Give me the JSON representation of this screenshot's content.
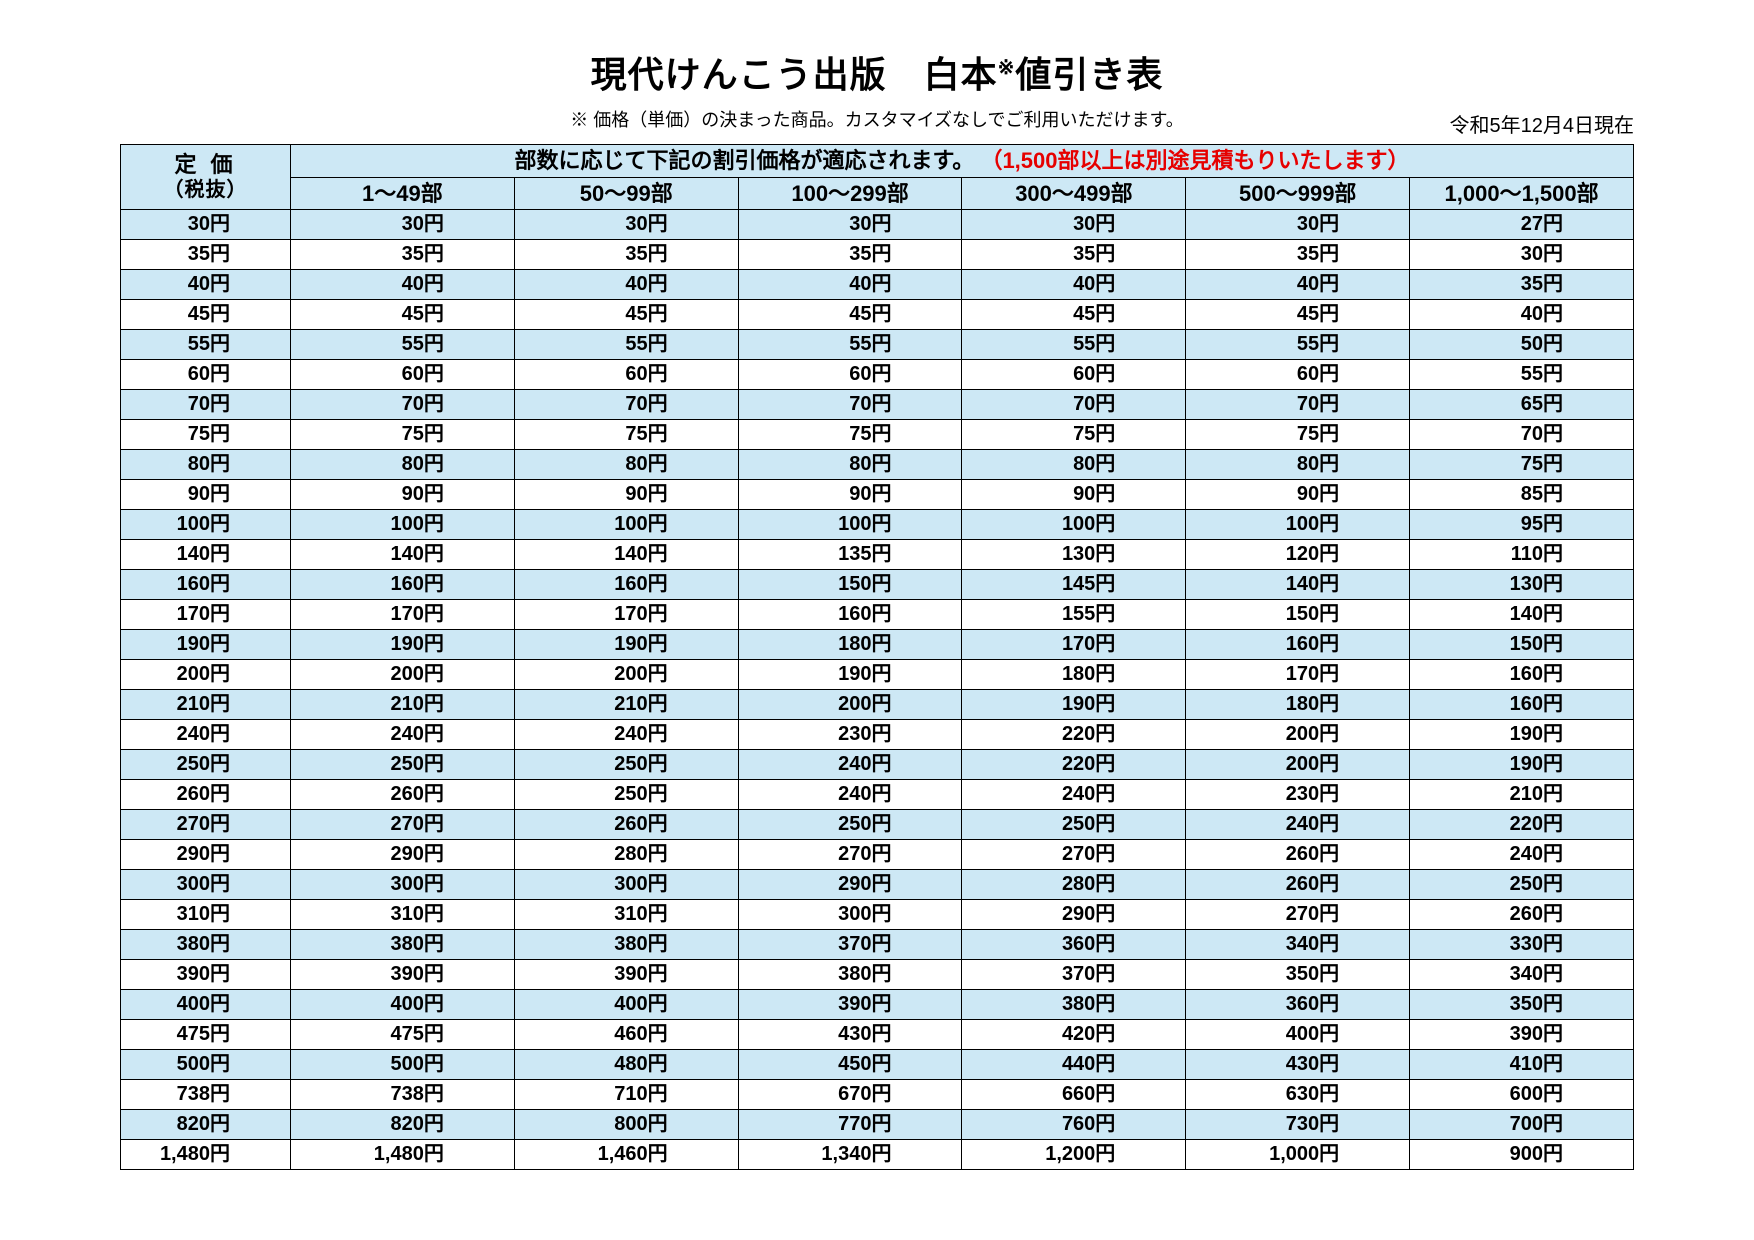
{
  "title": "現代けんこう出版　白本",
  "title_suffix": "値引き表",
  "note_mark": "※",
  "subtitle": "※ 価格（単価）の決まった商品。カスタマイズなしでご利用いただけます。",
  "date_text": "令和5年12月4日現在",
  "header": {
    "price_label_1": "定 価",
    "price_label_2": "（税抜）",
    "banner_black": "部数に応じて下記の割引価格が適応されます。",
    "banner_red": "（1,500部以上は別途見積もりいたします）",
    "columns": [
      "1～49部",
      "50～99部",
      "100～299部",
      "300～499部",
      "500～999部",
      "1,000～1,500部"
    ]
  },
  "colors": {
    "header_bg": "#cde8f5",
    "row_blue": "#cde8f5",
    "row_white": "#ffffff",
    "border": "#000000",
    "red": "#e60000"
  },
  "rows": [
    {
      "price": "30円",
      "cells": [
        "30円",
        "30円",
        "30円",
        "30円",
        "30円",
        "27円"
      ],
      "blue": true
    },
    {
      "price": "35円",
      "cells": [
        "35円",
        "35円",
        "35円",
        "35円",
        "35円",
        "30円"
      ],
      "blue": false
    },
    {
      "price": "40円",
      "cells": [
        "40円",
        "40円",
        "40円",
        "40円",
        "40円",
        "35円"
      ],
      "blue": true
    },
    {
      "price": "45円",
      "cells": [
        "45円",
        "45円",
        "45円",
        "45円",
        "45円",
        "40円"
      ],
      "blue": false
    },
    {
      "price": "55円",
      "cells": [
        "55円",
        "55円",
        "55円",
        "55円",
        "55円",
        "50円"
      ],
      "blue": true
    },
    {
      "price": "60円",
      "cells": [
        "60円",
        "60円",
        "60円",
        "60円",
        "60円",
        "55円"
      ],
      "blue": false
    },
    {
      "price": "70円",
      "cells": [
        "70円",
        "70円",
        "70円",
        "70円",
        "70円",
        "65円"
      ],
      "blue": true
    },
    {
      "price": "75円",
      "cells": [
        "75円",
        "75円",
        "75円",
        "75円",
        "75円",
        "70円"
      ],
      "blue": false
    },
    {
      "price": "80円",
      "cells": [
        "80円",
        "80円",
        "80円",
        "80円",
        "80円",
        "75円"
      ],
      "blue": true
    },
    {
      "price": "90円",
      "cells": [
        "90円",
        "90円",
        "90円",
        "90円",
        "90円",
        "85円"
      ],
      "blue": false
    },
    {
      "price": "100円",
      "cells": [
        "100円",
        "100円",
        "100円",
        "100円",
        "100円",
        "95円"
      ],
      "blue": true
    },
    {
      "price": "140円",
      "cells": [
        "140円",
        "140円",
        "135円",
        "130円",
        "120円",
        "110円"
      ],
      "blue": false
    },
    {
      "price": "160円",
      "cells": [
        "160円",
        "160円",
        "150円",
        "145円",
        "140円",
        "130円"
      ],
      "blue": true
    },
    {
      "price": "170円",
      "cells": [
        "170円",
        "170円",
        "160円",
        "155円",
        "150円",
        "140円"
      ],
      "blue": false
    },
    {
      "price": "190円",
      "cells": [
        "190円",
        "190円",
        "180円",
        "170円",
        "160円",
        "150円"
      ],
      "blue": true
    },
    {
      "price": "200円",
      "cells": [
        "200円",
        "200円",
        "190円",
        "180円",
        "170円",
        "160円"
      ],
      "blue": false
    },
    {
      "price": "210円",
      "cells": [
        "210円",
        "210円",
        "200円",
        "190円",
        "180円",
        "160円"
      ],
      "blue": true
    },
    {
      "price": "240円",
      "cells": [
        "240円",
        "240円",
        "230円",
        "220円",
        "200円",
        "190円"
      ],
      "blue": false
    },
    {
      "price": "250円",
      "cells": [
        "250円",
        "250円",
        "240円",
        "220円",
        "200円",
        "190円"
      ],
      "blue": true
    },
    {
      "price": "260円",
      "cells": [
        "260円",
        "250円",
        "240円",
        "240円",
        "230円",
        "210円"
      ],
      "blue": false
    },
    {
      "price": "270円",
      "cells": [
        "270円",
        "260円",
        "250円",
        "250円",
        "240円",
        "220円"
      ],
      "blue": true
    },
    {
      "price": "290円",
      "cells": [
        "290円",
        "280円",
        "270円",
        "270円",
        "260円",
        "240円"
      ],
      "blue": false
    },
    {
      "price": "300円",
      "cells": [
        "300円",
        "300円",
        "290円",
        "280円",
        "260円",
        "250円"
      ],
      "blue": true
    },
    {
      "price": "310円",
      "cells": [
        "310円",
        "310円",
        "300円",
        "290円",
        "270円",
        "260円"
      ],
      "blue": false
    },
    {
      "price": "380円",
      "cells": [
        "380円",
        "380円",
        "370円",
        "360円",
        "340円",
        "330円"
      ],
      "blue": true
    },
    {
      "price": "390円",
      "cells": [
        "390円",
        "390円",
        "380円",
        "370円",
        "350円",
        "340円"
      ],
      "blue": false
    },
    {
      "price": "400円",
      "cells": [
        "400円",
        "400円",
        "390円",
        "380円",
        "360円",
        "350円"
      ],
      "blue": true
    },
    {
      "price": "475円",
      "cells": [
        "475円",
        "460円",
        "430円",
        "420円",
        "400円",
        "390円"
      ],
      "blue": false
    },
    {
      "price": "500円",
      "cells": [
        "500円",
        "480円",
        "450円",
        "440円",
        "430円",
        "410円"
      ],
      "blue": true
    },
    {
      "price": "738円",
      "cells": [
        "738円",
        "710円",
        "670円",
        "660円",
        "630円",
        "600円"
      ],
      "blue": false
    },
    {
      "price": "820円",
      "cells": [
        "820円",
        "800円",
        "770円",
        "760円",
        "730円",
        "700円"
      ],
      "blue": true
    },
    {
      "price": "1,480円",
      "cells": [
        "1,480円",
        "1,460円",
        "1,340円",
        "1,200円",
        "1,000円",
        "900円"
      ],
      "blue": false
    }
  ]
}
